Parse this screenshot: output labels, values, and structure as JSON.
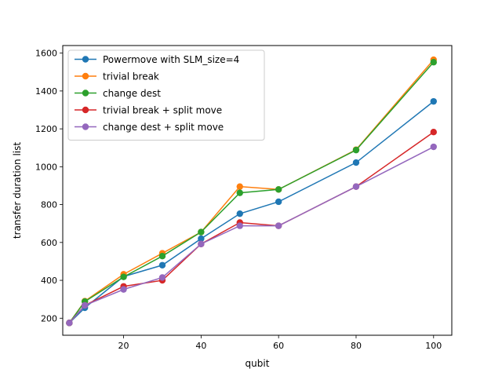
{
  "chart_data": {
    "type": "line",
    "title": "",
    "xlabel": "qubit",
    "ylabel": "transfer duration list",
    "xlim": [
      4.3,
      104.7
    ],
    "ylim": [
      110,
      1640
    ],
    "xticks": [
      20,
      40,
      60,
      80,
      100
    ],
    "yticks": [
      200,
      400,
      600,
      800,
      1000,
      1200,
      1400,
      1600
    ],
    "grid": false,
    "legend_position": "upper-left",
    "x": [
      6,
      10,
      20,
      30,
      40,
      50,
      60,
      80,
      100
    ],
    "series": [
      {
        "name": "Powermove with SLM_size=4",
        "color": "#1f77b4",
        "values": [
          175,
          255,
          420,
          480,
          620,
          752,
          815,
          1022,
          1345
        ]
      },
      {
        "name": "trivial break",
        "color": "#ff7f0e",
        "values": [
          175,
          290,
          432,
          543,
          655,
          895,
          880,
          1090,
          1565
        ]
      },
      {
        "name": "change dest",
        "color": "#2ca02c",
        "values": [
          175,
          288,
          418,
          528,
          655,
          862,
          880,
          1088,
          1552
        ]
      },
      {
        "name": "trivial break + split move",
        "color": "#d62728",
        "values": [
          175,
          268,
          368,
          400,
          592,
          705,
          688,
          895,
          1183
        ]
      },
      {
        "name": "change dest + split move",
        "color": "#9467bd",
        "values": [
          175,
          268,
          352,
          415,
          592,
          688,
          688,
          895,
          1105
        ]
      }
    ]
  }
}
